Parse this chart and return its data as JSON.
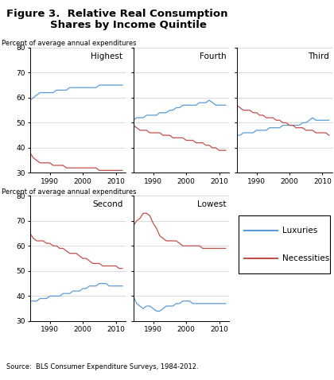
{
  "title_line1": "Figure 3.  Relative Real Consumption",
  "title_line2": "Shares by Income Quintile",
  "ylabel": "Percent of average annual expenditures",
  "source": "Source:  BLS Consumer Expenditure Surveys, 1984-2012.",
  "years": [
    1984,
    1985,
    1986,
    1987,
    1988,
    1989,
    1990,
    1991,
    1992,
    1993,
    1994,
    1995,
    1996,
    1997,
    1998,
    1999,
    2000,
    2001,
    2002,
    2003,
    2004,
    2005,
    2006,
    2007,
    2008,
    2009,
    2010,
    2011,
    2012
  ],
  "panels": [
    {
      "title": "Highest",
      "lux": [
        59,
        60,
        61,
        62,
        62,
        62,
        62,
        62,
        63,
        63,
        63,
        63,
        64,
        64,
        64,
        64,
        64,
        64,
        64,
        64,
        64,
        65,
        65,
        65,
        65,
        65,
        65,
        65,
        65
      ],
      "nec": [
        38,
        36,
        35,
        34,
        34,
        34,
        34,
        33,
        33,
        33,
        33,
        32,
        32,
        32,
        32,
        32,
        32,
        32,
        32,
        32,
        32,
        31,
        31,
        31,
        31,
        31,
        31,
        31,
        31
      ]
    },
    {
      "title": "Fourth",
      "lux": [
        51,
        52,
        52,
        52,
        53,
        53,
        53,
        53,
        54,
        54,
        54,
        55,
        55,
        56,
        56,
        57,
        57,
        57,
        57,
        57,
        58,
        58,
        58,
        59,
        58,
        57,
        57,
        57,
        57
      ],
      "nec": [
        49,
        48,
        47,
        47,
        47,
        46,
        46,
        46,
        46,
        45,
        45,
        45,
        44,
        44,
        44,
        44,
        43,
        43,
        43,
        42,
        42,
        42,
        41,
        41,
        40,
        40,
        39,
        39,
        39
      ]
    },
    {
      "title": "Third",
      "lux": [
        45,
        45,
        46,
        46,
        46,
        46,
        47,
        47,
        47,
        47,
        48,
        48,
        48,
        48,
        49,
        49,
        49,
        49,
        49,
        49,
        50,
        50,
        51,
        52,
        51,
        51,
        51,
        51,
        51
      ],
      "nec": [
        57,
        56,
        55,
        55,
        55,
        54,
        54,
        53,
        53,
        52,
        52,
        52,
        51,
        51,
        50,
        50,
        49,
        49,
        48,
        48,
        48,
        47,
        47,
        47,
        46,
        46,
        46,
        46,
        45
      ]
    },
    {
      "title": "Second",
      "lux": [
        38,
        38,
        38,
        39,
        39,
        39,
        40,
        40,
        40,
        40,
        41,
        41,
        41,
        42,
        42,
        42,
        43,
        43,
        44,
        44,
        44,
        45,
        45,
        45,
        44,
        44,
        44,
        44,
        44
      ],
      "nec": [
        65,
        63,
        62,
        62,
        62,
        61,
        61,
        60,
        60,
        59,
        59,
        58,
        57,
        57,
        57,
        56,
        55,
        55,
        54,
        53,
        53,
        53,
        52,
        52,
        52,
        52,
        52,
        51,
        51
      ]
    },
    {
      "title": "Lowest",
      "lux": [
        40,
        37,
        36,
        35,
        36,
        36,
        35,
        34,
        34,
        35,
        36,
        36,
        36,
        37,
        37,
        38,
        38,
        38,
        37,
        37,
        37,
        37,
        37,
        37,
        37,
        37,
        37,
        37,
        37
      ],
      "nec": [
        68,
        70,
        71,
        73,
        73,
        72,
        69,
        67,
        64,
        63,
        62,
        62,
        62,
        62,
        61,
        60,
        60,
        60,
        60,
        60,
        60,
        59,
        59,
        59,
        59,
        59,
        59,
        59,
        59
      ]
    }
  ],
  "lux_color": "#5b9bd5",
  "nec_color": "#c0504d",
  "ylim": [
    30,
    80
  ],
  "yticks": [
    30,
    40,
    50,
    60,
    70,
    80
  ],
  "xticks": [
    1990,
    2000,
    2010
  ]
}
